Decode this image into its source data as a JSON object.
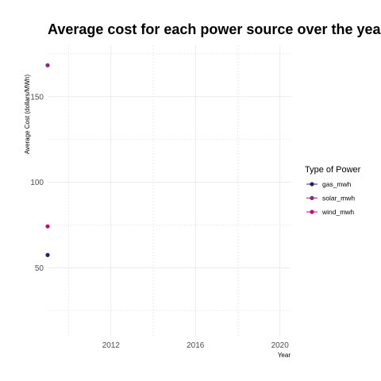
{
  "chart_data": {
    "type": "scatter",
    "title": "Average cost for each power source over the years",
    "xlabel": "Year",
    "ylabel": "Average Cost (dollars/MWh)",
    "xlim": [
      2009,
      2020.5
    ],
    "ylim": [
      10,
      180
    ],
    "x_ticks": [
      2012,
      2016,
      2020
    ],
    "y_ticks": [
      50,
      100,
      150
    ],
    "grid": true,
    "legend": {
      "title": "Type of Power",
      "position": "right"
    },
    "series": [
      {
        "name": "gas_mwh",
        "color": "#2c1d7a",
        "points": [
          {
            "x": 2009,
            "y": 57.6
          }
        ]
      },
      {
        "name": "solar_mwh",
        "color": "#8e2a78",
        "points": [
          {
            "x": 2009,
            "y": 168.3
          }
        ]
      },
      {
        "name": "wind_mwh",
        "color": "#cc0a6e",
        "points": [
          {
            "x": 2009,
            "y": 74.3
          }
        ]
      }
    ]
  }
}
